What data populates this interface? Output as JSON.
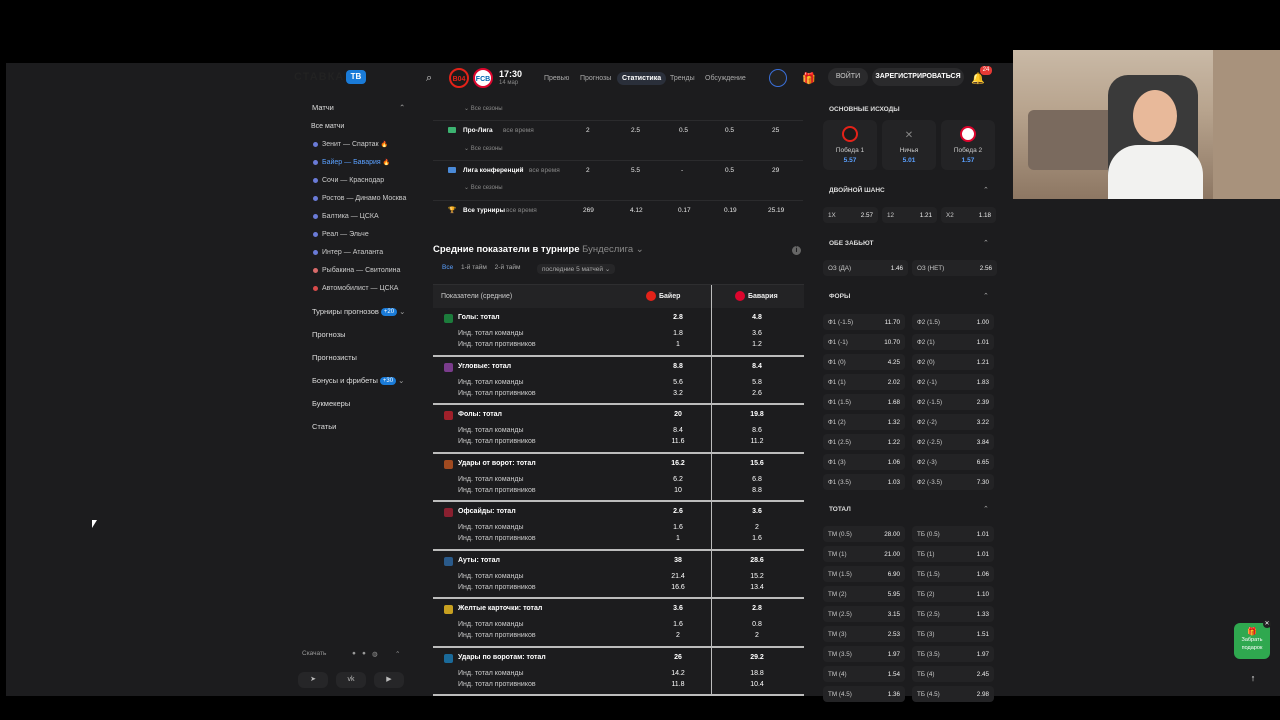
{
  "header": {
    "logo": "СТАВКА",
    "logo_badge": "ТВ",
    "team1_abbr": "B04",
    "team2_abbr": "FCB",
    "match_time": "17:30",
    "match_date": "14 мар",
    "tabs": [
      "Превью",
      "Прогнозы",
      "Статистика",
      "Тренды",
      "Обсуждение"
    ],
    "active_tab": "Статистика",
    "login": "ВОЙТИ",
    "register": "ЗАРЕГИСТРИРОВАТЬСЯ",
    "notifications": "24"
  },
  "sidebar": {
    "matches_title": "Матчи",
    "all_matches": "Все матчи",
    "items": [
      {
        "label": "Зенит — Спартак"
      },
      {
        "label": "Байер — Бавария"
      },
      {
        "label": "Сочи — Краснодар"
      },
      {
        "label": "Ростов — Динамо Москва"
      },
      {
        "label": "Балтика — ЦСКА"
      },
      {
        "label": "Реал — Эльче"
      },
      {
        "label": "Интер — Аталанта"
      },
      {
        "label": "Рыбакина — Свитолина"
      },
      {
        "label": "Автомобилист — ЦСКА"
      }
    ],
    "tournaments": "Турниры прогнозов",
    "tournaments_badge": "+20",
    "forecasts": "Прогнозы",
    "forecasters": "Прогнозисты",
    "bonuses": "Бонусы и фрибеты",
    "bonuses_badge": "+30",
    "bookmakers": "Букмекеры",
    "articles": "Статьи",
    "download": "Скачать"
  },
  "upper_table": {
    "all_seasons": "Все сезоны",
    "rows": [
      {
        "name": "Про-Лига",
        "period": "все время",
        "c1": "2",
        "c2": "2.5",
        "c3": "0.5",
        "c4": "0.5",
        "c5": "25"
      },
      {
        "name": "Лига конференций",
        "period": "все время",
        "c1": "2",
        "c2": "5.5",
        "c3": "-",
        "c4": "0.5",
        "c5": "29"
      },
      {
        "name": "Все турниры",
        "period": "все время",
        "c1": "269",
        "c2": "4.12",
        "c3": "0.17",
        "c4": "0.19",
        "c5": "25.19"
      }
    ]
  },
  "averages": {
    "title": "Средние показатели в турнире",
    "tournament": "Бундеслига",
    "subtabs": [
      "Все",
      "1-й тайм",
      "2-й тайм"
    ],
    "filter": "последние 5 матчей",
    "col_label": "Показатели (средние)",
    "team1": "Байер",
    "team2": "Бавария",
    "sub1": "Инд. тотал команды",
    "sub2": "Инд. тотал противников",
    "groups": [
      {
        "title": "Голы: тотал",
        "t1": "2.8",
        "t2": "4.8",
        "a1": "1.8",
        "a2": "3.6",
        "b1": "1",
        "b2": "1.2"
      },
      {
        "title": "Угловые: тотал",
        "t1": "8.8",
        "t2": "8.4",
        "a1": "5.6",
        "a2": "5.8",
        "b1": "3.2",
        "b2": "2.6"
      },
      {
        "title": "Фолы: тотал",
        "t1": "20",
        "t2": "19.8",
        "a1": "8.4",
        "a2": "8.6",
        "b1": "11.6",
        "b2": "11.2"
      },
      {
        "title": "Удары от ворот: тотал",
        "t1": "16.2",
        "t2": "15.6",
        "a1": "6.2",
        "a2": "6.8",
        "b1": "10",
        "b2": "8.8"
      },
      {
        "title": "Офсайды: тотал",
        "t1": "2.6",
        "t2": "3.6",
        "a1": "1.6",
        "a2": "2",
        "b1": "1",
        "b2": "1.6"
      },
      {
        "title": "Ауты: тотал",
        "t1": "38",
        "t2": "28.6",
        "a1": "21.4",
        "a2": "15.2",
        "b1": "16.6",
        "b2": "13.4"
      },
      {
        "title": "Желтые карточки: тотал",
        "t1": "3.6",
        "t2": "2.8",
        "a1": "1.6",
        "a2": "0.8",
        "b1": "2",
        "b2": "2"
      },
      {
        "title": "Удары по воротам: тотал",
        "t1": "26",
        "t2": "29.2",
        "a1": "14.2",
        "a2": "18.8",
        "b1": "11.8",
        "b2": "10.4"
      }
    ]
  },
  "odds": {
    "main_title": "ОСНОВНЫЕ ИСХОДЫ",
    "win1": "Победа 1",
    "win1_v": "5.57",
    "draw": "Ничья",
    "draw_v": "5.01",
    "win2": "Победа 2",
    "win2_v": "1.57",
    "dc_title": "ДВОЙНОЙ ШАНС",
    "dc": [
      {
        "k": "1X",
        "v": "2.57"
      },
      {
        "k": "12",
        "v": "1.21"
      },
      {
        "k": "X2",
        "v": "1.18"
      }
    ],
    "btts_title": "ОБЕ ЗАБЬЮТ",
    "btts": [
      {
        "k": "ОЗ (ДА)",
        "v": "1.46"
      },
      {
        "k": "ОЗ (НЕТ)",
        "v": "2.56"
      }
    ],
    "handicap_title": "ФОРЫ",
    "handicap": [
      [
        "Ф1 (-1.5)",
        "11.70",
        "Ф2 (1.5)",
        "1.00"
      ],
      [
        "Ф1 (-1)",
        "10.70",
        "Ф2 (1)",
        "1.01"
      ],
      [
        "Ф1 (0)",
        "4.25",
        "Ф2 (0)",
        "1.21"
      ],
      [
        "Ф1 (1)",
        "2.02",
        "Ф2 (-1)",
        "1.83"
      ],
      [
        "Ф1 (1.5)",
        "1.68",
        "Ф2 (-1.5)",
        "2.39"
      ],
      [
        "Ф1 (2)",
        "1.32",
        "Ф2 (-2)",
        "3.22"
      ],
      [
        "Ф1 (2.5)",
        "1.22",
        "Ф2 (-2.5)",
        "3.84"
      ],
      [
        "Ф1 (3)",
        "1.06",
        "Ф2 (-3)",
        "6.65"
      ],
      [
        "Ф1 (3.5)",
        "1.03",
        "Ф2 (-3.5)",
        "7.30"
      ]
    ],
    "total_title": "ТОТАЛ",
    "total": [
      [
        "ТМ (0.5)",
        "28.00",
        "ТБ (0.5)",
        "1.01"
      ],
      [
        "ТМ (1)",
        "21.00",
        "ТБ (1)",
        "1.01"
      ],
      [
        "ТМ (1.5)",
        "6.90",
        "ТБ (1.5)",
        "1.06"
      ],
      [
        "ТМ (2)",
        "5.95",
        "ТБ (2)",
        "1.10"
      ],
      [
        "ТМ (2.5)",
        "3.15",
        "ТБ (2.5)",
        "1.33"
      ],
      [
        "ТМ (3)",
        "2.53",
        "ТБ (3)",
        "1.51"
      ],
      [
        "ТМ (3.5)",
        "1.97",
        "ТБ (3.5)",
        "1.97"
      ],
      [
        "ТМ (4)",
        "1.54",
        "ТБ (4)",
        "2.45"
      ],
      [
        "ТМ (4.5)",
        "1.36",
        "ТБ (4.5)",
        "2.98"
      ]
    ]
  },
  "floating": {
    "gift_line1": "Забрать",
    "gift_line2": "подарок"
  }
}
